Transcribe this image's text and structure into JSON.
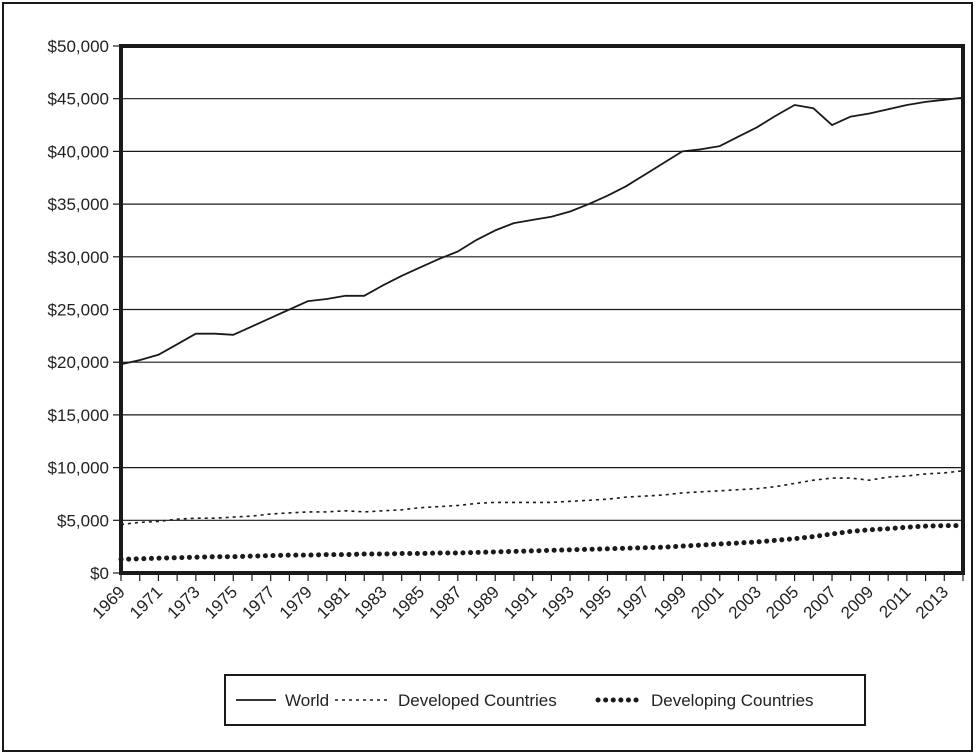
{
  "colors": {
    "line": "#1a1a1a",
    "grid": "#1a1a1a",
    "background": "#ffffff"
  },
  "chart_data": {
    "type": "line",
    "title": "",
    "xlabel": "",
    "ylabel": "",
    "ylim": [
      0,
      50000
    ],
    "yticks": [
      0,
      5000,
      10000,
      15000,
      20000,
      25000,
      30000,
      35000,
      40000,
      45000,
      50000
    ],
    "ytick_labels": [
      "$0",
      "$5,000",
      "$10,000",
      "$15,000",
      "$20,000",
      "$25,000",
      "$30,000",
      "$35,000",
      "$40,000",
      "$45,000",
      "$50,000"
    ],
    "xlim": [
      1969,
      2014
    ],
    "xtick_labels": [
      "1969",
      "1971",
      "1973",
      "1975",
      "1977",
      "1979",
      "1981",
      "1983",
      "1985",
      "1987",
      "1989",
      "1991",
      "1993",
      "1995",
      "1997",
      "1999",
      "2001",
      "2003",
      "2005",
      "2007",
      "2009",
      "2011",
      "2013"
    ],
    "grid": "horizontal",
    "legend_position": "bottom-center",
    "x": [
      1969,
      1970,
      1971,
      1972,
      1973,
      1974,
      1975,
      1976,
      1977,
      1978,
      1979,
      1980,
      1981,
      1982,
      1983,
      1984,
      1985,
      1986,
      1987,
      1988,
      1989,
      1990,
      1991,
      1992,
      1993,
      1994,
      1995,
      1996,
      1997,
      1998,
      1999,
      2000,
      2001,
      2002,
      2003,
      2004,
      2005,
      2006,
      2007,
      2008,
      2009,
      2010,
      2011,
      2012,
      2013,
      2014
    ],
    "series": [
      {
        "name": "World",
        "style": "solid",
        "values": [
          19800,
          20200,
          20700,
          21700,
          22700,
          22700,
          22600,
          23400,
          24200,
          25000,
          25800,
          26000,
          26300,
          26300,
          27300,
          28200,
          29000,
          29800,
          30500,
          31600,
          32500,
          33200,
          33500,
          33800,
          34300,
          35000,
          35800,
          36700,
          37800,
          38900,
          40000,
          40200,
          40500,
          41400,
          42300,
          43400,
          44400,
          44100,
          42500,
          43300,
          43600,
          44000,
          44400,
          44700,
          44900,
          45100
        ],
        "legend_label": "World"
      },
      {
        "name": "Developed Countries",
        "style": "dotted",
        "values": [
          4600,
          4800,
          4900,
          5100,
          5200,
          5200,
          5300,
          5400,
          5600,
          5700,
          5800,
          5800,
          5900,
          5800,
          5900,
          6000,
          6200,
          6300,
          6400,
          6600,
          6700,
          6700,
          6700,
          6700,
          6800,
          6900,
          7000,
          7200,
          7300,
          7400,
          7600,
          7700,
          7800,
          7900,
          8000,
          8200,
          8500,
          8800,
          9000,
          9000,
          8800,
          9100,
          9200,
          9400,
          9500,
          9700
        ],
        "legend_label": "Developed Countries"
      },
      {
        "name": "Developing Countries",
        "style": "heavy-dotted",
        "values": [
          1300,
          1350,
          1400,
          1450,
          1500,
          1550,
          1550,
          1600,
          1650,
          1700,
          1700,
          1750,
          1750,
          1800,
          1800,
          1850,
          1850,
          1900,
          1900,
          1950,
          2000,
          2050,
          2100,
          2150,
          2200,
          2250,
          2300,
          2350,
          2400,
          2450,
          2550,
          2650,
          2750,
          2850,
          2950,
          3100,
          3250,
          3450,
          3700,
          3950,
          4100,
          4200,
          4350,
          4450,
          4500,
          4500
        ],
        "legend_label": "Developing Countries"
      }
    ]
  }
}
